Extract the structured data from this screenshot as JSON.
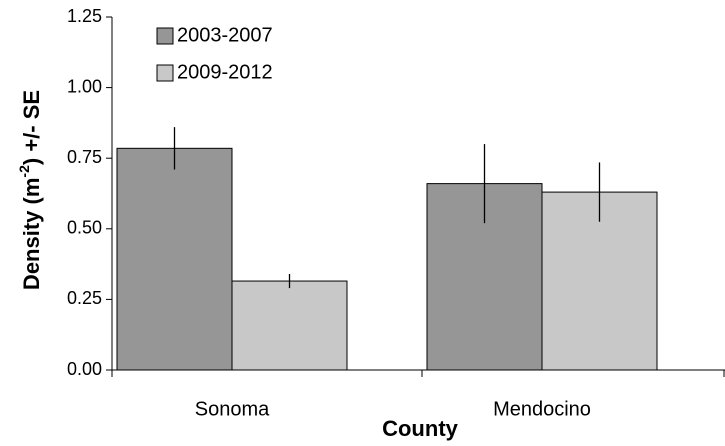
{
  "chart_data": {
    "type": "bar",
    "xlabel": "County",
    "ylabel": [
      "Density (m",
      "-2",
      ") +/- SE"
    ],
    "categories": [
      "Sonoma",
      "Mendocino"
    ],
    "series": [
      {
        "name": "2003-2007",
        "color": "#969696",
        "values": [
          0.785,
          0.66
        ],
        "errors": [
          0.075,
          0.14
        ]
      },
      {
        "name": "2009-2012",
        "color": "#c8c8c8",
        "values": [
          0.315,
          0.63
        ],
        "errors": [
          0.025,
          0.105
        ]
      }
    ],
    "ylim": [
      0,
      1.25
    ],
    "yticks": [
      {
        "value": 0,
        "label": "0.00"
      },
      {
        "value": 0.25,
        "label": "0.25"
      },
      {
        "value": 0.5,
        "label": "0.50"
      },
      {
        "value": 0.75,
        "label": "0.75"
      },
      {
        "value": 1,
        "label": "1.00"
      },
      {
        "value": 1.25,
        "label": "1.25"
      }
    ],
    "legend": "upper left"
  }
}
